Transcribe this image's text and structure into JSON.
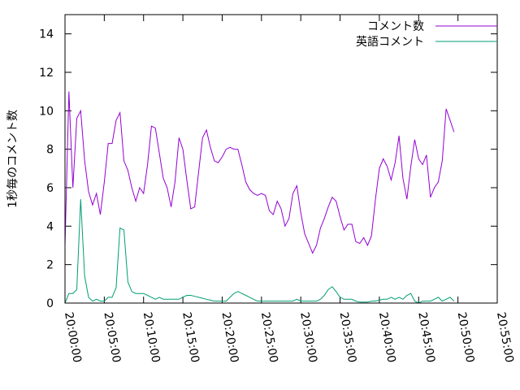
{
  "chart_data": {
    "type": "line",
    "title": "",
    "xlabel": "",
    "ylabel": "1秒毎のコメント数",
    "ylim": [
      0,
      15
    ],
    "yticks": [
      "0",
      "2",
      "4",
      "6",
      "8",
      "10",
      "12",
      "14"
    ],
    "ytick_values": [
      0,
      2,
      4,
      6,
      8,
      10,
      12,
      14
    ],
    "xlim": [
      "20:00:00",
      "20:55:00"
    ],
    "xticks": [
      "20:00:00",
      "20:05:00",
      "20:10:00",
      "20:15:00",
      "20:20:00",
      "20:25:00",
      "20:30:00",
      "20:35:00",
      "20:40:00",
      "20:45:00",
      "20:50:00",
      "20:55:00"
    ],
    "legend_position": "top-right",
    "grid": false,
    "series": [
      {
        "name": "コメント数",
        "color": "#9400d3",
        "points": [
          [
            "20:00:00",
            3.0
          ],
          [
            "20:00:30",
            11.0
          ],
          [
            "20:01:00",
            6.0
          ],
          [
            "20:01:30",
            9.6
          ],
          [
            "20:02:00",
            10.0
          ],
          [
            "20:02:30",
            7.4
          ],
          [
            "20:03:00",
            5.8
          ],
          [
            "20:03:30",
            5.1
          ],
          [
            "20:04:00",
            5.7
          ],
          [
            "20:04:30",
            4.6
          ],
          [
            "20:05:00",
            6.3
          ],
          [
            "20:05:30",
            8.3
          ],
          [
            "20:06:00",
            8.3
          ],
          [
            "20:06:30",
            9.5
          ],
          [
            "20:07:00",
            9.9
          ],
          [
            "20:07:30",
            7.4
          ],
          [
            "20:08:00",
            6.9
          ],
          [
            "20:08:30",
            6.0
          ],
          [
            "20:09:00",
            5.3
          ],
          [
            "20:09:30",
            6.0
          ],
          [
            "20:10:00",
            5.7
          ],
          [
            "20:10:30",
            7.2
          ],
          [
            "20:11:00",
            9.2
          ],
          [
            "20:11:30",
            9.1
          ],
          [
            "20:12:00",
            7.8
          ],
          [
            "20:12:30",
            6.5
          ],
          [
            "20:13:00",
            6.0
          ],
          [
            "20:13:30",
            5.0
          ],
          [
            "20:14:00",
            6.3
          ],
          [
            "20:14:30",
            8.6
          ],
          [
            "20:15:00",
            8.0
          ],
          [
            "20:15:30",
            6.4
          ],
          [
            "20:16:00",
            4.9
          ],
          [
            "20:16:30",
            5.0
          ],
          [
            "20:17:00",
            6.8
          ],
          [
            "20:17:30",
            8.6
          ],
          [
            "20:18:00",
            9.0
          ],
          [
            "20:18:30",
            8.1
          ],
          [
            "20:19:00",
            7.4
          ],
          [
            "20:19:30",
            7.3
          ],
          [
            "20:20:00",
            7.6
          ],
          [
            "20:20:30",
            8.0
          ],
          [
            "20:21:00",
            8.1
          ],
          [
            "20:21:30",
            8.0
          ],
          [
            "20:22:00",
            8.0
          ],
          [
            "20:22:30",
            7.2
          ],
          [
            "20:23:00",
            6.3
          ],
          [
            "20:23:30",
            5.9
          ],
          [
            "20:24:00",
            5.7
          ],
          [
            "20:24:30",
            5.6
          ],
          [
            "20:25:00",
            5.7
          ],
          [
            "20:25:30",
            5.6
          ],
          [
            "20:26:00",
            4.8
          ],
          [
            "20:26:30",
            4.6
          ],
          [
            "20:27:00",
            5.3
          ],
          [
            "20:27:30",
            4.9
          ],
          [
            "20:28:00",
            4.0
          ],
          [
            "20:28:30",
            4.4
          ],
          [
            "20:29:00",
            5.7
          ],
          [
            "20:29:30",
            6.1
          ],
          [
            "20:30:00",
            4.7
          ],
          [
            "20:30:30",
            3.6
          ],
          [
            "20:31:00",
            3.1
          ],
          [
            "20:31:30",
            2.6
          ],
          [
            "20:32:00",
            3.0
          ],
          [
            "20:32:30",
            3.9
          ],
          [
            "20:33:00",
            4.4
          ],
          [
            "20:33:30",
            5.0
          ],
          [
            "20:34:00",
            5.5
          ],
          [
            "20:34:30",
            5.3
          ],
          [
            "20:35:00",
            4.5
          ],
          [
            "20:35:30",
            3.8
          ],
          [
            "20:36:00",
            4.1
          ],
          [
            "20:36:30",
            4.1
          ],
          [
            "20:37:00",
            3.2
          ],
          [
            "20:37:30",
            3.1
          ],
          [
            "20:38:00",
            3.4
          ],
          [
            "20:38:30",
            3.0
          ],
          [
            "20:39:00",
            3.5
          ],
          [
            "20:39:30",
            5.4
          ],
          [
            "20:40:00",
            7.0
          ],
          [
            "20:40:30",
            7.5
          ],
          [
            "20:41:00",
            7.1
          ],
          [
            "20:41:30",
            6.4
          ],
          [
            "20:42:00",
            7.3
          ],
          [
            "20:42:30",
            8.7
          ],
          [
            "20:43:00",
            6.5
          ],
          [
            "20:43:30",
            5.4
          ],
          [
            "20:44:00",
            7.1
          ],
          [
            "20:44:30",
            8.5
          ],
          [
            "20:45:00",
            7.5
          ],
          [
            "20:45:30",
            7.2
          ],
          [
            "20:46:00",
            7.7
          ],
          [
            "20:46:30",
            5.5
          ],
          [
            "20:47:00",
            6.0
          ],
          [
            "20:47:30",
            6.3
          ],
          [
            "20:48:00",
            7.4
          ],
          [
            "20:48:30",
            10.1
          ],
          [
            "20:49:00",
            9.5
          ],
          [
            "20:49:30",
            8.9
          ]
        ]
      },
      {
        "name": "英語コメント",
        "color": "#009e73",
        "points": [
          [
            "20:00:00",
            0.0
          ],
          [
            "20:00:30",
            0.5
          ],
          [
            "20:01:00",
            0.5
          ],
          [
            "20:01:30",
            0.7
          ],
          [
            "20:02:00",
            5.4
          ],
          [
            "20:02:30",
            1.4
          ],
          [
            "20:03:00",
            0.3
          ],
          [
            "20:03:30",
            0.1
          ],
          [
            "20:04:00",
            0.2
          ],
          [
            "20:04:30",
            0.1
          ],
          [
            "20:05:00",
            0.1
          ],
          [
            "20:05:30",
            0.3
          ],
          [
            "20:06:00",
            0.3
          ],
          [
            "20:06:30",
            0.8
          ],
          [
            "20:07:00",
            3.9
          ],
          [
            "20:07:30",
            3.8
          ],
          [
            "20:08:00",
            1.1
          ],
          [
            "20:08:30",
            0.6
          ],
          [
            "20:09:00",
            0.5
          ],
          [
            "20:09:30",
            0.5
          ],
          [
            "20:10:00",
            0.5
          ],
          [
            "20:10:30",
            0.4
          ],
          [
            "20:11:00",
            0.3
          ],
          [
            "20:11:30",
            0.2
          ],
          [
            "20:12:00",
            0.3
          ],
          [
            "20:12:30",
            0.2
          ],
          [
            "20:13:00",
            0.2
          ],
          [
            "20:13:30",
            0.2
          ],
          [
            "20:14:00",
            0.2
          ],
          [
            "20:14:30",
            0.2
          ],
          [
            "20:15:00",
            0.3
          ],
          [
            "20:15:30",
            0.4
          ],
          [
            "20:16:00",
            0.4
          ],
          [
            "20:16:30",
            0.35
          ],
          [
            "20:17:00",
            0.3
          ],
          [
            "20:17:30",
            0.25
          ],
          [
            "20:18:00",
            0.2
          ],
          [
            "20:18:30",
            0.15
          ],
          [
            "20:19:00",
            0.1
          ],
          [
            "20:19:30",
            0.1
          ],
          [
            "20:20:00",
            0.1
          ],
          [
            "20:20:30",
            0.1
          ],
          [
            "20:21:00",
            0.3
          ],
          [
            "20:21:30",
            0.5
          ],
          [
            "20:22:00",
            0.6
          ],
          [
            "20:22:30",
            0.5
          ],
          [
            "20:23:00",
            0.4
          ],
          [
            "20:23:30",
            0.3
          ],
          [
            "20:24:00",
            0.2
          ],
          [
            "20:24:30",
            0.1
          ],
          [
            "20:25:00",
            0.1
          ],
          [
            "20:25:30",
            0.1
          ],
          [
            "20:26:00",
            0.1
          ],
          [
            "20:26:30",
            0.1
          ],
          [
            "20:27:00",
            0.1
          ],
          [
            "20:27:30",
            0.1
          ],
          [
            "20:28:00",
            0.1
          ],
          [
            "20:28:30",
            0.1
          ],
          [
            "20:29:00",
            0.1
          ],
          [
            "20:29:30",
            0.2
          ],
          [
            "20:30:00",
            0.1
          ],
          [
            "20:30:30",
            0.1
          ],
          [
            "20:31:00",
            0.1
          ],
          [
            "20:31:30",
            0.1
          ],
          [
            "20:32:00",
            0.1
          ],
          [
            "20:32:30",
            0.2
          ],
          [
            "20:33:00",
            0.4
          ],
          [
            "20:33:30",
            0.7
          ],
          [
            "20:34:00",
            0.85
          ],
          [
            "20:34:30",
            0.6
          ],
          [
            "20:35:00",
            0.3
          ],
          [
            "20:35:30",
            0.2
          ],
          [
            "20:36:00",
            0.2
          ],
          [
            "20:36:30",
            0.2
          ],
          [
            "20:37:00",
            0.1
          ],
          [
            "20:37:30",
            0.05
          ],
          [
            "20:38:00",
            0.05
          ],
          [
            "20:38:30",
            0.05
          ],
          [
            "20:39:00",
            0.1
          ],
          [
            "20:39:30",
            0.1
          ],
          [
            "20:40:00",
            0.15
          ],
          [
            "20:40:30",
            0.2
          ],
          [
            "20:41:00",
            0.2
          ],
          [
            "20:41:30",
            0.3
          ],
          [
            "20:42:00",
            0.2
          ],
          [
            "20:42:30",
            0.3
          ],
          [
            "20:43:00",
            0.2
          ],
          [
            "20:43:30",
            0.4
          ],
          [
            "20:44:00",
            0.5
          ],
          [
            "20:44:30",
            0.1
          ],
          [
            "20:45:00",
            0.0
          ],
          [
            "20:45:30",
            0.1
          ],
          [
            "20:46:00",
            0.1
          ],
          [
            "20:46:30",
            0.1
          ],
          [
            "20:47:00",
            0.2
          ],
          [
            "20:47:30",
            0.3
          ],
          [
            "20:48:00",
            0.1
          ],
          [
            "20:48:30",
            0.2
          ],
          [
            "20:49:00",
            0.3
          ],
          [
            "20:49:30",
            0.1
          ]
        ]
      }
    ]
  }
}
